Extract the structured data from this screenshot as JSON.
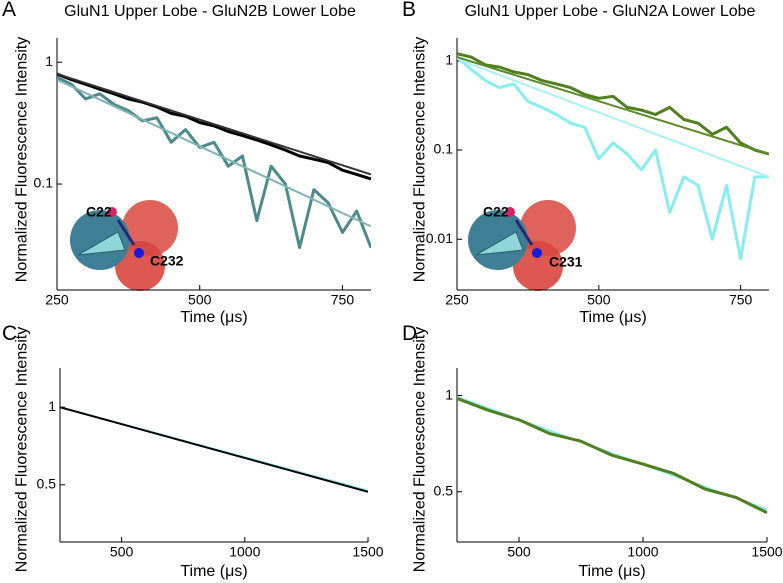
{
  "chart_data": [
    {
      "type": "line",
      "panel_label": "A",
      "title": "GluN1 Upper Lobe - GluN2B Lower Lobe",
      "xlabel": "Time (μs)",
      "ylabel": "Normalized Fluorescence Intensity",
      "log_y": true,
      "xlim": [
        250,
        800
      ],
      "ylim": [
        0.0135,
        1.58
      ],
      "xticks": [
        250,
        500,
        750
      ],
      "yticks": [
        1,
        0.1
      ],
      "annotations": [
        "C22",
        "C232"
      ],
      "x": [
        250,
        275,
        300,
        325,
        350,
        375,
        400,
        425,
        450,
        475,
        500,
        525,
        550,
        575,
        600,
        625,
        650,
        675,
        700,
        725,
        750,
        775,
        800
      ],
      "series": [
        {
          "color": "#4e8a8c",
          "values": [
            0.75,
            0.66,
            0.5,
            0.55,
            0.45,
            0.4,
            0.33,
            0.35,
            0.22,
            0.28,
            0.2,
            0.22,
            0.14,
            0.17,
            0.05,
            0.14,
            0.1,
            0.03,
            0.09,
            0.07,
            0.04,
            0.06,
            0.03
          ]
        },
        {
          "color": "#000000",
          "values": [
            0.8,
            0.72,
            0.66,
            0.6,
            0.55,
            0.5,
            0.47,
            0.43,
            0.38,
            0.36,
            0.32,
            0.3,
            0.27,
            0.25,
            0.23,
            0.21,
            0.19,
            0.17,
            0.16,
            0.15,
            0.13,
            0.12,
            0.11
          ]
        },
        {
          "color": "#7fb3b5",
          "x": [
            250,
            800
          ],
          "values": [
            0.72,
            0.045
          ]
        },
        {
          "color": "#333333",
          "x": [
            250,
            800
          ],
          "values": [
            0.8,
            0.12
          ]
        }
      ]
    },
    {
      "type": "line",
      "panel_label": "B",
      "title": "GluN1 Upper Lobe - GluN2A Lower Lobe",
      "xlabel": "Time (μs)",
      "ylabel": "Normalized Fluorescence Intensity",
      "log_y": true,
      "xlim": [
        250,
        800
      ],
      "ylim": [
        0.0027,
        1.8
      ],
      "xticks": [
        250,
        500,
        750
      ],
      "yticks": [
        1,
        0.1,
        0.01
      ],
      "annotations": [
        "C22",
        "C231"
      ],
      "x": [
        250,
        275,
        300,
        325,
        350,
        375,
        400,
        425,
        450,
        475,
        500,
        525,
        550,
        575,
        600,
        625,
        650,
        675,
        700,
        725,
        750,
        775,
        800
      ],
      "series": [
        {
          "color": "#86eef0",
          "values": [
            1.1,
            0.8,
            0.6,
            0.5,
            0.55,
            0.35,
            0.3,
            0.25,
            0.2,
            0.18,
            0.08,
            0.12,
            0.09,
            0.06,
            0.1,
            0.02,
            0.05,
            0.04,
            0.01,
            0.04,
            0.006,
            0.05,
            0.05
          ]
        },
        {
          "color": "#4f7f1e",
          "values": [
            1.2,
            1.1,
            0.9,
            0.85,
            0.75,
            0.7,
            0.6,
            0.55,
            0.5,
            0.42,
            0.38,
            0.4,
            0.3,
            0.28,
            0.25,
            0.3,
            0.22,
            0.2,
            0.15,
            0.18,
            0.12,
            0.1,
            0.09
          ]
        },
        {
          "color": "#a8f2f2",
          "x": [
            250,
            800
          ],
          "values": [
            1.05,
            0.05
          ]
        },
        {
          "color": "#5a8a2a",
          "x": [
            250,
            800
          ],
          "values": [
            1.1,
            0.09
          ]
        }
      ]
    },
    {
      "type": "line",
      "panel_label": "C",
      "xlabel": "Time (μs)",
      "ylabel": "Normalized Fluorescence Intensity",
      "log_y": true,
      "xlim": [
        250,
        1500
      ],
      "ylim": [
        0.3,
        1.42
      ],
      "xticks": [
        500,
        1000,
        1500
      ],
      "yticks": [
        1,
        0.5
      ],
      "x": [
        250,
        1500
      ],
      "series": [
        {
          "color": "#86eef0",
          "values": [
            1.0,
            0.475
          ]
        },
        {
          "color": "#000000",
          "values": [
            1.0,
            0.47
          ]
        }
      ]
    },
    {
      "type": "line",
      "panel_label": "D",
      "xlabel": "Time (μs)",
      "ylabel": "Normalized Fluorescence Intensity",
      "log_y": true,
      "xlim": [
        250,
        1500
      ],
      "ylim": [
        0.348,
        1.22
      ],
      "xticks": [
        500,
        1000,
        1500
      ],
      "yticks": [
        1,
        0.5
      ],
      "x": [
        250,
        375,
        500,
        625,
        750,
        875,
        1000,
        1125,
        1250,
        1375,
        1500
      ],
      "series": [
        {
          "color": "#86eef0",
          "x": [
            250,
            1500
          ],
          "values": [
            0.99,
            0.44
          ]
        },
        {
          "color": "#4f7f1e",
          "values": [
            0.98,
            0.9,
            0.84,
            0.76,
            0.72,
            0.65,
            0.61,
            0.57,
            0.51,
            0.48,
            0.43
          ]
        }
      ]
    }
  ]
}
